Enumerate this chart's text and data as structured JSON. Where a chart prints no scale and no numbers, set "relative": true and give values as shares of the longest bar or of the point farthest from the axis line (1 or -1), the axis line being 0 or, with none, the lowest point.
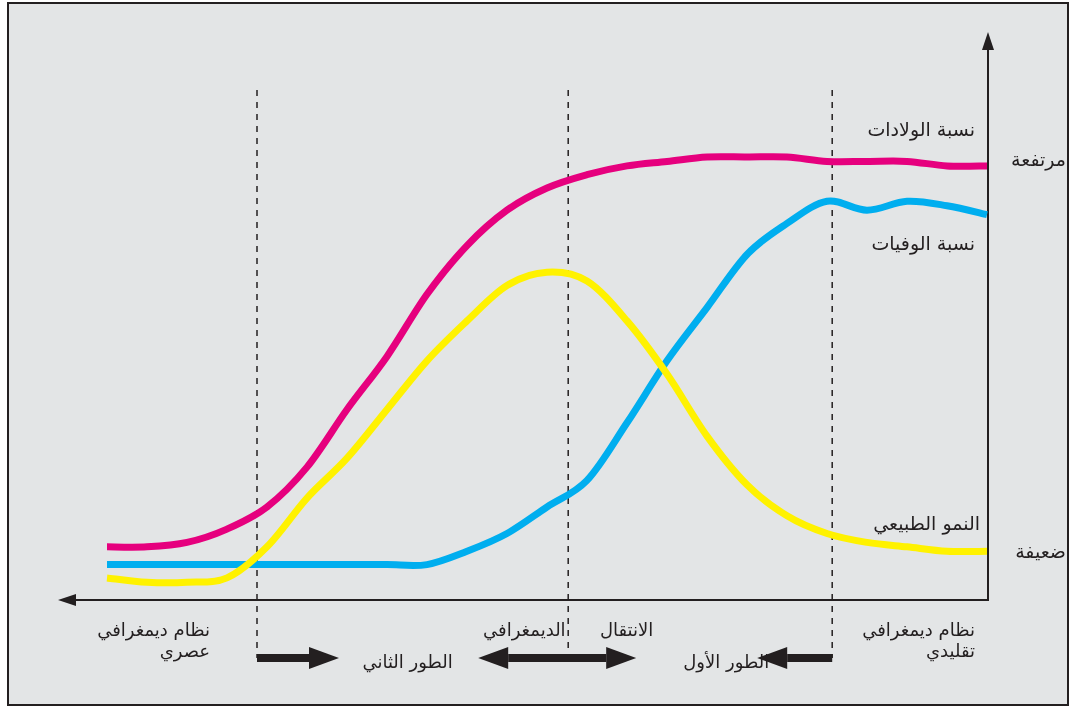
{
  "chart_data": {
    "type": "line",
    "relative": true,
    "categories": [
      null,
      null,
      null,
      null,
      null,
      null,
      null,
      null,
      null,
      null,
      null,
      null,
      null,
      null,
      null,
      null,
      null,
      null,
      null,
      null,
      null,
      null,
      null
    ],
    "series": [
      {
        "name": "نسبة الولادات",
        "color": "#e6007e",
        "values": [
          0.12,
          0.12,
          0.13,
          0.16,
          0.21,
          0.3,
          0.43,
          0.55,
          0.69,
          0.8,
          0.88,
          0.93,
          0.96,
          0.98,
          0.99,
          1.0,
          1.0,
          1.0,
          0.99,
          0.99,
          0.99,
          0.98,
          0.98
        ]
      },
      {
        "name": "نسبة الوفيات",
        "color": "#00aeef",
        "values": [
          0.08,
          0.08,
          0.08,
          0.08,
          0.08,
          0.08,
          0.08,
          0.08,
          0.08,
          0.11,
          0.15,
          0.21,
          0.27,
          0.4,
          0.54,
          0.66,
          0.78,
          0.85,
          0.9,
          0.88,
          0.9,
          0.89,
          0.87
        ]
      },
      {
        "name": "النمو الطبيعي",
        "color": "#fff200",
        "values": [
          0.05,
          0.04,
          0.04,
          0.05,
          0.12,
          0.23,
          0.32,
          0.43,
          0.54,
          0.63,
          0.71,
          0.74,
          0.72,
          0.63,
          0.51,
          0.37,
          0.26,
          0.19,
          0.15,
          0.13,
          0.12,
          0.11,
          0.11
        ]
      }
    ],
    "annotations": [
      "مرتفعة",
      "ضعيفة",
      "نظام ديمغرافي\nعصري",
      "الانتقال      الديمغرافي",
      "نظام ديمغرافي\nتقليدي",
      "الطور الثاني",
      "الطور الأول"
    ],
    "line_style": "solid",
    "marker": "none"
  }
}
